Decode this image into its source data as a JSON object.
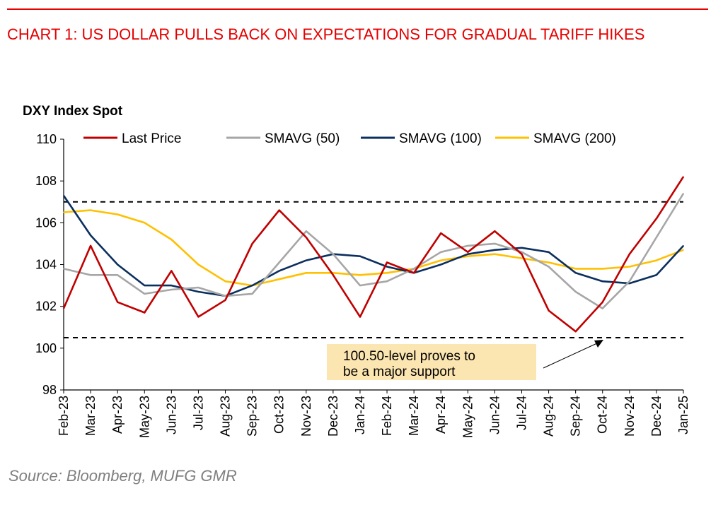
{
  "title": "CHART 1: US DOLLAR PULLS BACK ON EXPECTATIONS FOR GRADUAL TARIFF HIKES",
  "source": "Source: Bloomberg, MUFG GMR",
  "colors": {
    "brand_red": "#e60000",
    "last_price": "#c00000",
    "sma50": "#a6a6a6",
    "sma100": "#0b2f5e",
    "sma200": "#ffc000",
    "annotation_bg": "#fbe5b0"
  },
  "chart_data": {
    "type": "line",
    "title": "DXY Index Spot",
    "xlabel": "",
    "ylabel": "",
    "ylim": [
      98,
      110
    ],
    "y_ticks": [
      98,
      100,
      102,
      104,
      106,
      108,
      110
    ],
    "x_tick_labels": [
      "Feb-23",
      "Mar-23",
      "Apr-23",
      "May-23",
      "Jun-23",
      "Jul-23",
      "Aug-23",
      "Sep-23",
      "Oct-23",
      "Nov-23",
      "Dec-23",
      "Jan-24",
      "Feb-24",
      "Mar-24",
      "Apr-24",
      "May-24",
      "Jun-24",
      "Jul-24",
      "Aug-24",
      "Sep-24",
      "Oct-24",
      "Nov-24",
      "Dec-24",
      "Jan-25"
    ],
    "legend": [
      "Last Price",
      "SMAVG (50)",
      "SMAVG (100)",
      "SMAVG (200)"
    ],
    "legend_position": "top",
    "grid": false,
    "x": [
      "Feb-23",
      "Mar-23",
      "Apr-23",
      "May-23",
      "Jun-23",
      "Jul-23",
      "Aug-23",
      "Sep-23",
      "Oct-23",
      "Nov-23",
      "Dec-23",
      "Jan-24",
      "Feb-24",
      "Mar-24",
      "Apr-24",
      "May-24",
      "Jun-24",
      "Jul-24",
      "Aug-24",
      "Sep-24",
      "Oct-24",
      "Nov-24",
      "Dec-24",
      "Jan-25"
    ],
    "series": [
      {
        "name": "Last Price",
        "values": [
          101.9,
          104.9,
          102.2,
          101.7,
          103.7,
          101.5,
          102.3,
          105.0,
          106.6,
          105.3,
          103.5,
          101.5,
          104.1,
          103.6,
          105.5,
          104.6,
          105.6,
          104.5,
          101.8,
          100.8,
          102.2,
          104.5,
          106.2,
          108.2
        ]
      },
      {
        "name": "SMAVG (50)",
        "values": [
          103.8,
          103.5,
          103.5,
          102.6,
          102.8,
          102.9,
          102.5,
          102.6,
          104.1,
          105.6,
          104.5,
          103.0,
          103.2,
          103.8,
          104.6,
          104.9,
          105.0,
          104.6,
          103.9,
          102.7,
          101.9,
          103.2,
          105.3,
          107.4
        ]
      },
      {
        "name": "SMAVG (100)",
        "values": [
          107.3,
          105.4,
          104.0,
          103.0,
          103.0,
          102.7,
          102.5,
          103.0,
          103.7,
          104.2,
          104.5,
          104.4,
          103.9,
          103.6,
          104.0,
          104.5,
          104.7,
          104.8,
          104.6,
          103.6,
          103.2,
          103.1,
          103.5,
          104.9
        ]
      },
      {
        "name": "SMAVG (200)",
        "values": [
          106.5,
          106.6,
          106.4,
          106.0,
          105.2,
          104.0,
          103.2,
          103.0,
          103.3,
          103.6,
          103.6,
          103.5,
          103.6,
          103.8,
          104.2,
          104.4,
          104.5,
          104.3,
          104.1,
          103.8,
          103.8,
          103.9,
          104.2,
          104.7
        ]
      }
    ],
    "reference_lines": [
      {
        "y": 107.0,
        "style": "dashed"
      },
      {
        "y": 100.5,
        "style": "dashed"
      }
    ],
    "annotations": [
      {
        "text_line1": "100.50-level proves to",
        "text_line2": "be a major support",
        "points_to": {
          "x": "Oct-24",
          "y": 100.5
        }
      }
    ]
  }
}
